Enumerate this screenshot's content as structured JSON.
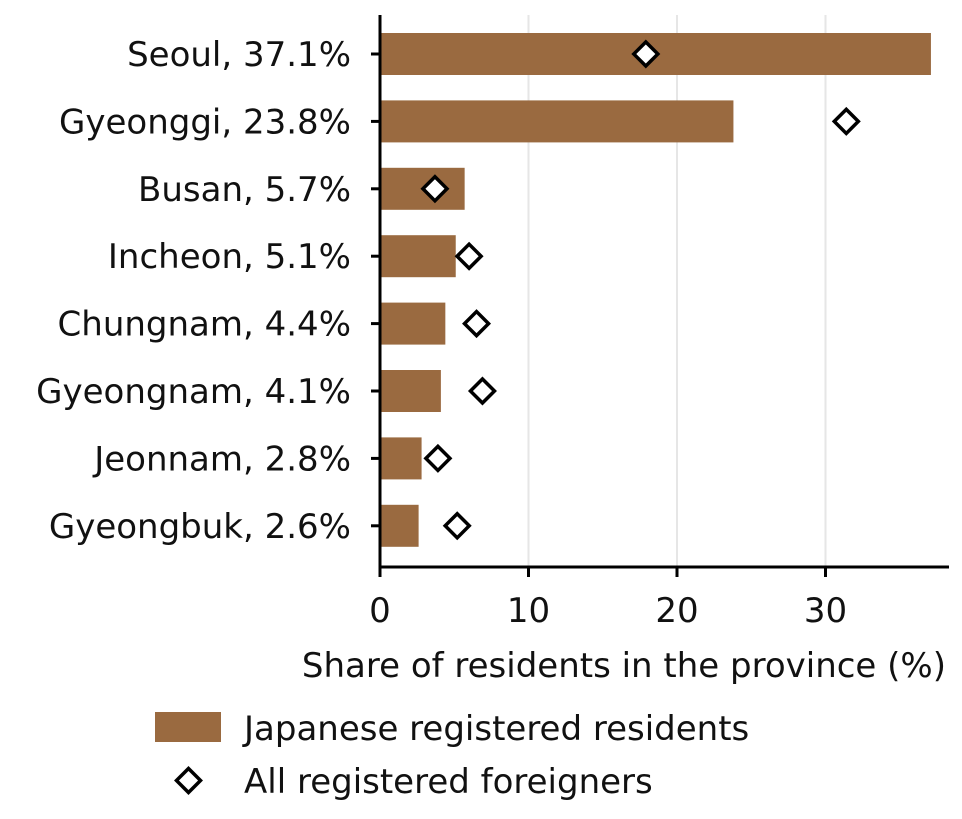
{
  "chart_data": {
    "type": "bar",
    "orientation": "horizontal",
    "title": "",
    "xlabel": "Share of residents in the province (%)",
    "ylabel": "",
    "xlim": [
      0,
      38
    ],
    "xticks": [
      0,
      10,
      20,
      30
    ],
    "grid": "vertical",
    "categories": [
      "Seoul, 37.1%",
      "Gyeonggi, 23.8%",
      "Busan, 5.7%",
      "Incheon, 5.1%",
      "Chungnam, 4.4%",
      "Gyeongnam, 4.1%",
      "Jeonnam, 2.8%",
      "Gyeongbuk, 2.6%"
    ],
    "series": [
      {
        "name": "Japanese registered residents",
        "mark": "bar",
        "color": "#9a6a40",
        "values": [
          37.1,
          23.8,
          5.7,
          5.1,
          4.4,
          4.1,
          2.8,
          2.6
        ]
      },
      {
        "name": "All registered foreigners",
        "mark": "diamond",
        "color": "#000000",
        "values": [
          17.9,
          31.4,
          3.7,
          6.0,
          6.5,
          6.9,
          3.9,
          5.2
        ]
      }
    ],
    "legend_position": "bottom"
  }
}
